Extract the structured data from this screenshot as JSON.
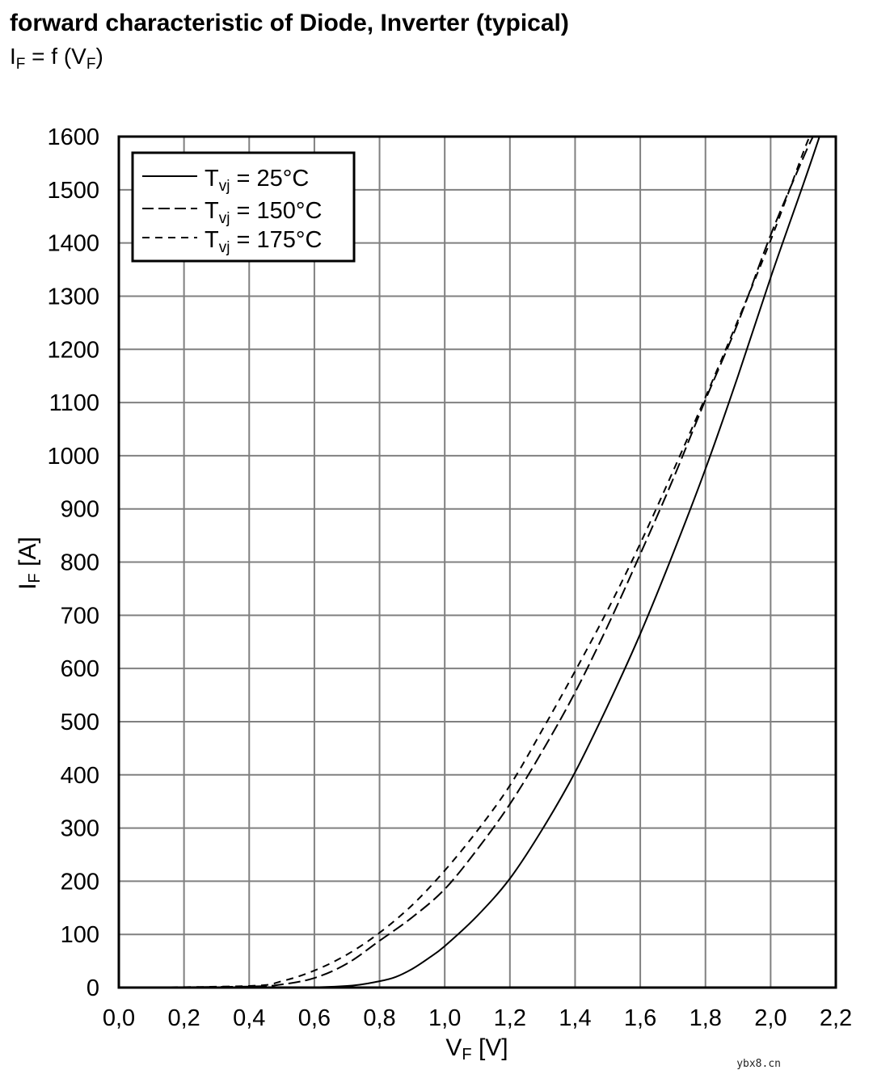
{
  "header": {
    "title": "forward characteristic of Diode, Inverter (typical)",
    "subtitle_prefix": "I",
    "subtitle_sub1": "F",
    "subtitle_mid": " = f (V",
    "subtitle_sub2": "F",
    "subtitle_suffix": ")"
  },
  "watermark": "ybx8.cn",
  "chart_data": {
    "type": "line",
    "xlabel": {
      "main": "V",
      "sub": "F",
      "unit": " [V]"
    },
    "ylabel": {
      "main": "I",
      "sub": "F",
      "unit": " [A]"
    },
    "xlim": [
      0.0,
      2.2
    ],
    "ylim": [
      0,
      1600
    ],
    "grid": true,
    "legend_position": "top-left",
    "x_ticks": [
      0.0,
      0.2,
      0.4,
      0.6,
      0.8,
      1.0,
      1.2,
      1.4,
      1.6,
      1.8,
      2.0,
      2.2
    ],
    "x_tick_labels": [
      "0,0",
      "0,2",
      "0,4",
      "0,6",
      "0,8",
      "1,0",
      "1,2",
      "1,4",
      "1,6",
      "1,8",
      "2,0",
      "2,2"
    ],
    "y_ticks": [
      0,
      100,
      200,
      300,
      400,
      500,
      600,
      700,
      800,
      900,
      1000,
      1100,
      1200,
      1300,
      1400,
      1500,
      1600
    ],
    "y_tick_labels": [
      "0",
      "100",
      "200",
      "300",
      "400",
      "500",
      "600",
      "700",
      "800",
      "900",
      "1000",
      "1100",
      "1200",
      "1300",
      "1400",
      "1500",
      "1600"
    ],
    "series": [
      {
        "name": "Tvj = 25°C",
        "legend_main": "T",
        "legend_sub": "vj",
        "legend_rest": " = 25°C",
        "style": "solid",
        "x": [
          0.0,
          0.5,
          0.7,
          0.8,
          0.85,
          0.9,
          0.95,
          1.0,
          1.1,
          1.2,
          1.3,
          1.4,
          1.5,
          1.6,
          1.7,
          1.8,
          1.9,
          2.0,
          2.1,
          2.15
        ],
        "y": [
          0,
          0,
          3,
          12,
          20,
          35,
          55,
          78,
          135,
          205,
          298,
          405,
          530,
          665,
          815,
          975,
          1150,
          1335,
          1510,
          1600
        ]
      },
      {
        "name": "Tvj = 150°C",
        "legend_main": "T",
        "legend_sub": "vj",
        "legend_rest": " = 150°C",
        "style": "long-dash",
        "x": [
          0.0,
          0.4,
          0.5,
          0.6,
          0.7,
          0.8,
          0.9,
          1.0,
          1.1,
          1.2,
          1.3,
          1.4,
          1.5,
          1.6,
          1.7,
          1.8,
          1.9,
          2.0,
          2.1,
          2.13
        ],
        "y": [
          0,
          2,
          6,
          18,
          45,
          88,
          132,
          185,
          260,
          345,
          445,
          555,
          680,
          815,
          955,
          1105,
          1250,
          1415,
          1560,
          1600
        ]
      },
      {
        "name": "Tvj = 175°C",
        "legend_main": "T",
        "legend_sub": "vj",
        "legend_rest": " = 175°C",
        "style": "short-dash",
        "x": [
          0.0,
          0.4,
          0.5,
          0.6,
          0.7,
          0.8,
          0.9,
          1.0,
          1.1,
          1.2,
          1.3,
          1.4,
          1.5,
          1.6,
          1.7,
          1.8,
          1.9,
          2.0,
          2.1,
          2.12
        ],
        "y": [
          0,
          3,
          12,
          32,
          62,
          103,
          155,
          220,
          295,
          380,
          485,
          595,
          710,
          835,
          970,
          1110,
          1255,
          1405,
          1570,
          1600
        ]
      }
    ]
  }
}
